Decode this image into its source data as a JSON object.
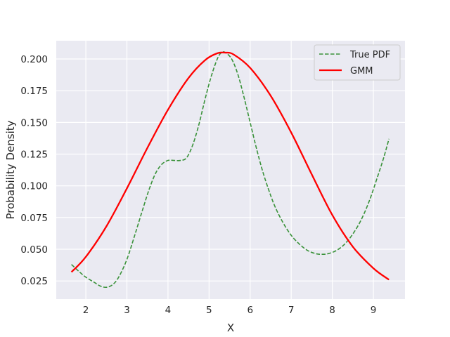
{
  "chart_data": {
    "type": "line",
    "title": "",
    "xlabel": "X",
    "ylabel": "Probability Density",
    "xlim": [
      1.28,
      9.77
    ],
    "ylim": [
      0.0107,
      0.2144
    ],
    "xticks": [
      2,
      3,
      4,
      5,
      6,
      7,
      8,
      9
    ],
    "yticks": [
      0.025,
      0.05,
      0.075,
      0.1,
      0.125,
      0.15,
      0.175,
      0.2
    ],
    "grid": true,
    "legend_position": "top-right",
    "series": [
      {
        "name": "True PDF",
        "color": "#3a923a",
        "style": "dashed",
        "x": [
          1.65,
          1.85,
          2.0,
          2.2,
          2.35,
          2.5,
          2.65,
          2.8,
          3.0,
          3.2,
          3.4,
          3.55,
          3.7,
          3.85,
          4.0,
          4.15,
          4.3,
          4.45,
          4.6,
          4.75,
          4.9,
          5.05,
          5.2,
          5.3,
          5.4,
          5.55,
          5.7,
          5.85,
          6.0,
          6.15,
          6.3,
          6.45,
          6.6,
          6.8,
          7.0,
          7.2,
          7.4,
          7.6,
          7.75,
          7.9,
          8.1,
          8.3,
          8.5,
          8.7,
          8.9,
          9.1,
          9.25,
          9.38
        ],
        "values": [
          0.038,
          0.032,
          0.028,
          0.024,
          0.021,
          0.02,
          0.022,
          0.028,
          0.042,
          0.062,
          0.083,
          0.098,
          0.11,
          0.117,
          0.12,
          0.12,
          0.12,
          0.122,
          0.132,
          0.148,
          0.168,
          0.186,
          0.2,
          0.205,
          0.205,
          0.2,
          0.188,
          0.17,
          0.15,
          0.13,
          0.112,
          0.097,
          0.084,
          0.071,
          0.061,
          0.054,
          0.049,
          0.0465,
          0.046,
          0.0465,
          0.049,
          0.054,
          0.062,
          0.073,
          0.088,
          0.107,
          0.122,
          0.137
        ]
      },
      {
        "name": "GMM",
        "color": "#ff0000",
        "style": "solid",
        "x": [
          1.65,
          2.0,
          2.5,
          3.0,
          3.5,
          4.0,
          4.5,
          4.9,
          5.2,
          5.4,
          5.6,
          6.0,
          6.5,
          7.0,
          7.5,
          8.0,
          8.5,
          9.0,
          9.38
        ],
        "values": [
          0.032,
          0.044,
          0.068,
          0.098,
          0.13,
          0.16,
          0.185,
          0.199,
          0.2045,
          0.205,
          0.2035,
          0.193,
          0.171,
          0.142,
          0.109,
          0.077,
          0.052,
          0.035,
          0.026
        ]
      }
    ]
  }
}
